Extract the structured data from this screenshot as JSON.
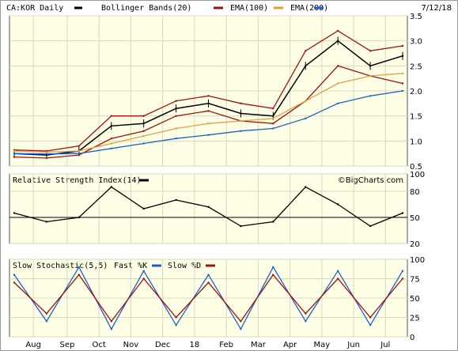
{
  "header": {
    "symbol": "CA:KOR Daily",
    "date": "7/12/18",
    "legend": [
      {
        "label": "",
        "color": "#000000"
      },
      {
        "label": "Bollinger Bands(20)",
        "color": "#a01010"
      },
      {
        "label": "EMA(100)",
        "color": "#e0a040"
      },
      {
        "label": "EMA(200)",
        "color": "#1a60d0"
      }
    ]
  },
  "watermark": "©BigCharts.com",
  "x_labels": [
    "Aug",
    "Sep",
    "Oct",
    "Nov",
    "Dec",
    "18",
    "Feb",
    "Mar",
    "Apr",
    "May",
    "Jun",
    "Jul"
  ],
  "chart_data": [
    {
      "type": "line",
      "panel": "price",
      "title": "CA:KOR Daily",
      "ylim": [
        0.5,
        3.5
      ],
      "yticks": [
        0.5,
        1.0,
        1.5,
        2.0,
        2.5,
        3.0,
        3.5
      ],
      "x": [
        "Jul",
        "Aug",
        "Sep",
        "Oct",
        "Nov",
        "Dec",
        "Jan",
        "Feb",
        "Mar",
        "Apr",
        "May",
        "Jun",
        "Jul"
      ],
      "series": [
        {
          "name": "",
          "color": "#000000",
          "values": [
            0.75,
            0.72,
            0.8,
            1.3,
            1.35,
            1.65,
            1.75,
            1.55,
            1.5,
            2.5,
            3.0,
            2.5,
            2.7
          ]
        },
        {
          "name": "Bollinger Bands(20)",
          "part": "upper",
          "color": "#a01010",
          "values": [
            0.82,
            0.8,
            0.9,
            1.5,
            1.5,
            1.8,
            1.9,
            1.75,
            1.65,
            2.8,
            3.2,
            2.8,
            2.9
          ]
        },
        {
          "name": "Bollinger Bands(20)",
          "part": "lower",
          "color": "#a01010",
          "values": [
            0.68,
            0.66,
            0.72,
            1.05,
            1.2,
            1.5,
            1.6,
            1.4,
            1.35,
            1.8,
            2.5,
            2.3,
            2.15
          ]
        },
        {
          "name": "EMA(100)",
          "color": "#e0a040",
          "values": [
            0.8,
            0.78,
            0.8,
            0.95,
            1.1,
            1.25,
            1.35,
            1.4,
            1.45,
            1.8,
            2.15,
            2.3,
            2.35
          ]
        },
        {
          "name": "EMA(200)",
          "color": "#1a60d0",
          "values": [
            0.75,
            0.74,
            0.75,
            0.85,
            0.95,
            1.05,
            1.12,
            1.2,
            1.25,
            1.45,
            1.75,
            1.9,
            2.0
          ]
        }
      ]
    },
    {
      "type": "line",
      "panel": "rsi",
      "title": "Relative Strength Index(14)",
      "ylim": [
        20,
        100
      ],
      "yticks": [
        20,
        50,
        80,
        100
      ],
      "x": [
        "Jul",
        "Aug",
        "Sep",
        "Oct",
        "Nov",
        "Dec",
        "Jan",
        "Feb",
        "Mar",
        "Apr",
        "May",
        "Jun",
        "Jul"
      ],
      "series": [
        {
          "name": "Relative Strength Index(14)",
          "color": "#000000",
          "values": [
            55,
            45,
            50,
            85,
            60,
            70,
            62,
            40,
            45,
            85,
            65,
            40,
            55
          ]
        }
      ]
    },
    {
      "type": "line",
      "panel": "stochastic",
      "title": "Slow Stochastic(5,5)",
      "ylim": [
        0,
        100
      ],
      "yticks": [
        0,
        25,
        50,
        75,
        100
      ],
      "x": [
        "Jul",
        "Aug",
        "Sep",
        "Oct",
        "Nov",
        "Dec",
        "Jan",
        "Feb",
        "Mar",
        "Apr",
        "May",
        "Jun",
        "Jul"
      ],
      "series": [
        {
          "name": "Fast %K",
          "color": "#1a60d0",
          "values": [
            80,
            20,
            90,
            10,
            85,
            15,
            80,
            10,
            90,
            20,
            85,
            15,
            85
          ]
        },
        {
          "name": "Slow %D",
          "color": "#a01010",
          "values": [
            70,
            30,
            80,
            20,
            75,
            25,
            70,
            20,
            80,
            30,
            75,
            25,
            75
          ]
        }
      ]
    }
  ]
}
